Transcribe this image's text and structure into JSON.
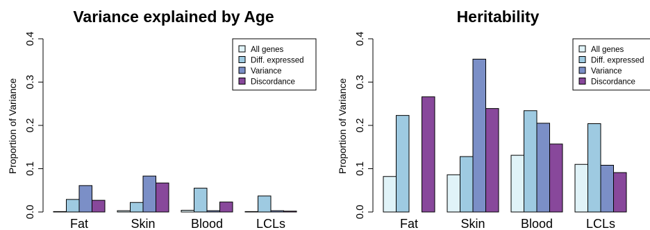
{
  "chart_data": [
    {
      "type": "bar",
      "title": "Variance explained by Age",
      "xlabel": "",
      "ylabel": "Proportion of Variance",
      "ylim": [
        0,
        0.4
      ],
      "yticks": [
        "0.0",
        "0.1",
        "0.2",
        "0.3",
        "0.4"
      ],
      "categories": [
        "Fat",
        "Skin",
        "Blood",
        "LCLs"
      ],
      "legend_position": "top-right",
      "series": [
        {
          "name": "All genes",
          "color": "#e0f3f8",
          "values": [
            0.001,
            0.003,
            0.004,
            0.001
          ]
        },
        {
          "name": "Diff. expressed",
          "color": "#9ecae1",
          "values": [
            0.029,
            0.022,
            0.055,
            0.037
          ]
        },
        {
          "name": "Variance",
          "color": "#7b8fc7",
          "values": [
            0.061,
            0.083,
            0.003,
            0.003
          ]
        },
        {
          "name": "Discordance",
          "color": "#88489b",
          "values": [
            0.027,
            0.067,
            0.023,
            0.002
          ]
        }
      ]
    },
    {
      "type": "bar",
      "title": "Heritability",
      "xlabel": "",
      "ylabel": "Proportion of Variance",
      "ylim": [
        0,
        0.4
      ],
      "yticks": [
        "0.0",
        "0.1",
        "0.2",
        "0.3",
        "0.4"
      ],
      "categories": [
        "Fat",
        "Skin",
        "Blood",
        "LCLs"
      ],
      "legend_position": "top-right",
      "series": [
        {
          "name": "All genes",
          "color": "#e0f3f8",
          "values": [
            0.082,
            0.086,
            0.131,
            0.11
          ]
        },
        {
          "name": "Diff. expressed",
          "color": "#9ecae1",
          "values": [
            0.223,
            0.128,
            0.234,
            0.204
          ]
        },
        {
          "name": "Variance",
          "color": "#7b8fc7",
          "values": [
            0.0,
            0.353,
            0.205,
            0.108
          ]
        },
        {
          "name": "Discordance",
          "color": "#88489b",
          "values": [
            0.266,
            0.239,
            0.157,
            0.091
          ]
        }
      ]
    }
  ]
}
